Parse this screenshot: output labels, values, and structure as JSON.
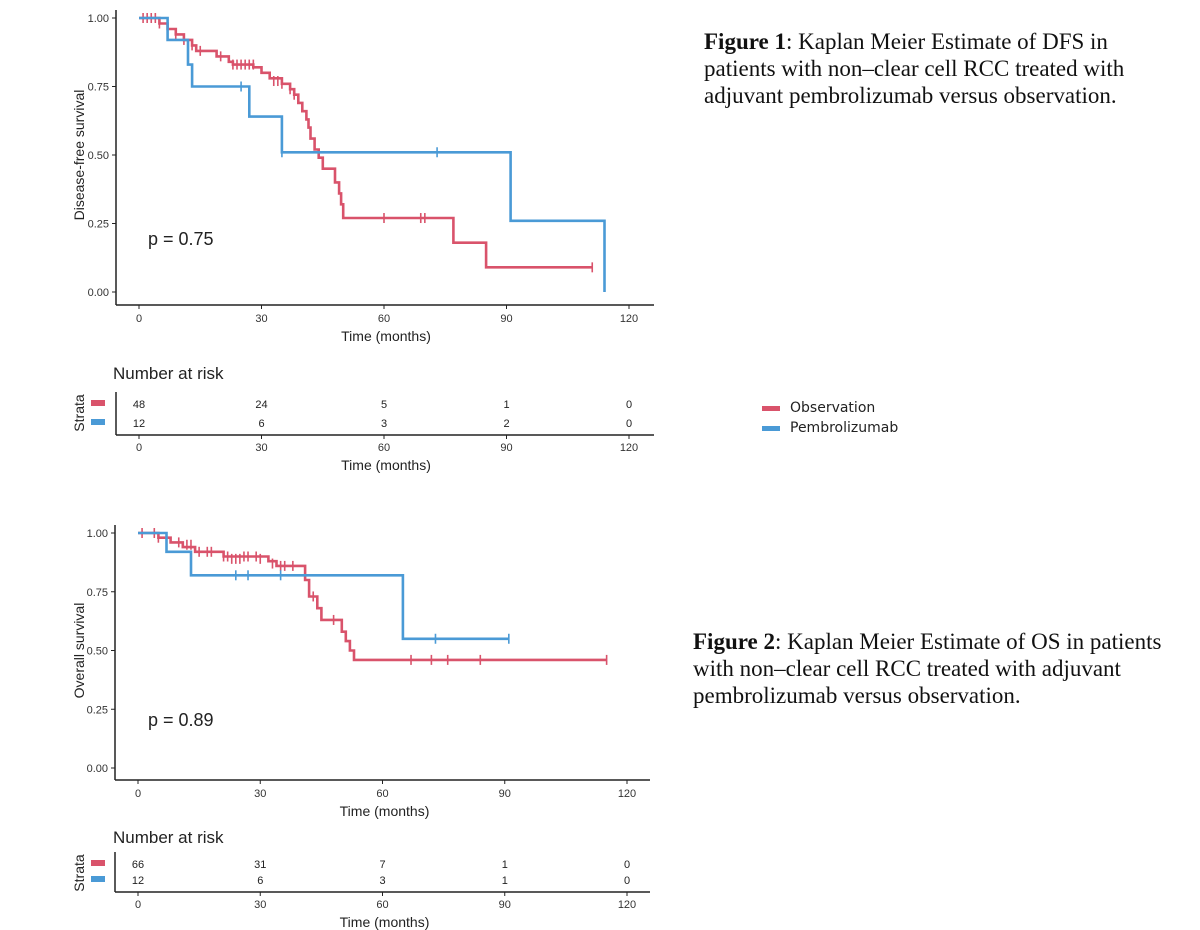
{
  "chart_data": [
    {
      "type": "line",
      "id": "dfs",
      "ylabel": "Disease-free survival",
      "xlabel": "Time (months)",
      "annotation": "p = 0.75",
      "xlim": [
        0,
        120
      ],
      "ylim": [
        0,
        1
      ],
      "x_ticks": [
        "0",
        "30",
        "60",
        "90",
        "120"
      ],
      "y_ticks": [
        "0.00",
        "0.25",
        "0.50",
        "0.75",
        "1.00"
      ],
      "series": [
        {
          "name": "Observation",
          "color": "#d9536b",
          "steps": [
            [
              0,
              1.0
            ],
            [
              5,
              0.98
            ],
            [
              7,
              0.96
            ],
            [
              9,
              0.94
            ],
            [
              11,
              0.92
            ],
            [
              13,
              0.9
            ],
            [
              14,
              0.88
            ],
            [
              19,
              0.86
            ],
            [
              22,
              0.84
            ],
            [
              23,
              0.83
            ],
            [
              28,
              0.82
            ],
            [
              30,
              0.8
            ],
            [
              32,
              0.78
            ],
            [
              35,
              0.76
            ],
            [
              37,
              0.74
            ],
            [
              38,
              0.72
            ],
            [
              39,
              0.69
            ],
            [
              40,
              0.66
            ],
            [
              41,
              0.63
            ],
            [
              41.5,
              0.6
            ],
            [
              42,
              0.56
            ],
            [
              43,
              0.52
            ],
            [
              44,
              0.49
            ],
            [
              45,
              0.45
            ],
            [
              48,
              0.4
            ],
            [
              49,
              0.36
            ],
            [
              49.5,
              0.32
            ],
            [
              50,
              0.27
            ],
            [
              77,
              0.18
            ],
            [
              85,
              0.09
            ],
            [
              111,
              0.09
            ]
          ],
          "censor": [
            [
              1,
              1.0
            ],
            [
              2,
              1.0
            ],
            [
              3,
              1.0
            ],
            [
              4,
              1.0
            ],
            [
              5,
              0.98
            ],
            [
              7,
              0.96
            ],
            [
              9,
              0.94
            ],
            [
              11,
              0.92
            ],
            [
              13,
              0.9
            ],
            [
              15,
              0.88
            ],
            [
              20,
              0.86
            ],
            [
              23,
              0.83
            ],
            [
              24,
              0.83
            ],
            [
              25,
              0.83
            ],
            [
              26,
              0.83
            ],
            [
              27,
              0.83
            ],
            [
              28,
              0.83
            ],
            [
              33,
              0.77
            ],
            [
              34,
              0.77
            ],
            [
              35,
              0.76
            ],
            [
              37,
              0.74
            ],
            [
              38,
              0.72
            ],
            [
              60,
              0.27
            ],
            [
              69,
              0.27
            ],
            [
              70,
              0.27
            ],
            [
              111,
              0.09
            ]
          ]
        },
        {
          "name": "Pembrolizumab",
          "color": "#4a9ad6",
          "steps": [
            [
              0,
              1.0
            ],
            [
              4,
              1.0
            ],
            [
              7,
              0.92
            ],
            [
              12,
              0.83
            ],
            [
              13,
              0.75
            ],
            [
              27,
              0.64
            ],
            [
              35,
              0.51
            ],
            [
              91,
              0.26
            ],
            [
              114,
              0.0
            ]
          ],
          "censor": [
            [
              25,
              0.75
            ],
            [
              35,
              0.51
            ],
            [
              73,
              0.51
            ]
          ]
        }
      ],
      "risk_table": {
        "title": "Number at risk",
        "strata_label": "Strata",
        "xlabel": "Time (months)",
        "x_ticks": [
          "0",
          "30",
          "60",
          "90",
          "120"
        ],
        "rows": [
          {
            "name": "Observation",
            "color": "#d9536b",
            "values": [
              "48",
              "24",
              "5",
              "1",
              "0"
            ]
          },
          {
            "name": "Pembrolizumab",
            "color": "#4a9ad6",
            "values": [
              "12",
              "6",
              "3",
              "2",
              "0"
            ]
          }
        ]
      }
    },
    {
      "type": "line",
      "id": "os",
      "ylabel": "Overall survival",
      "xlabel": "Time (months)",
      "annotation": "p = 0.89",
      "xlim": [
        0,
        120
      ],
      "ylim": [
        0,
        1
      ],
      "x_ticks": [
        "0",
        "30",
        "60",
        "90",
        "120"
      ],
      "y_ticks": [
        "0.00",
        "0.25",
        "0.50",
        "0.75",
        "1.00"
      ],
      "series": [
        {
          "name": "Observation",
          "color": "#d9536b",
          "steps": [
            [
              0,
              1.0
            ],
            [
              5,
              0.98
            ],
            [
              8,
              0.96
            ],
            [
              11,
              0.94
            ],
            [
              14,
              0.92
            ],
            [
              21,
              0.9
            ],
            [
              32,
              0.88
            ],
            [
              34,
              0.86
            ],
            [
              41,
              0.8
            ],
            [
              42,
              0.73
            ],
            [
              44,
              0.68
            ],
            [
              45,
              0.63
            ],
            [
              50,
              0.58
            ],
            [
              51,
              0.54
            ],
            [
              52,
              0.5
            ],
            [
              53,
              0.46
            ],
            [
              115,
              0.46
            ]
          ],
          "censor": [
            [
              1,
              1.0
            ],
            [
              4,
              1.0
            ],
            [
              5,
              0.98
            ],
            [
              10,
              0.96
            ],
            [
              12,
              0.95
            ],
            [
              13,
              0.95
            ],
            [
              15,
              0.92
            ],
            [
              17,
              0.92
            ],
            [
              18,
              0.92
            ],
            [
              21,
              0.9
            ],
            [
              22,
              0.9
            ],
            [
              23,
              0.89
            ],
            [
              24,
              0.89
            ],
            [
              25,
              0.89
            ],
            [
              26,
              0.9
            ],
            [
              27,
              0.9
            ],
            [
              29,
              0.9
            ],
            [
              30,
              0.89
            ],
            [
              33,
              0.87
            ],
            [
              35,
              0.86
            ],
            [
              36,
              0.86
            ],
            [
              38,
              0.86
            ],
            [
              43,
              0.73
            ],
            [
              48,
              0.63
            ],
            [
              67,
              0.46
            ],
            [
              72,
              0.46
            ],
            [
              76,
              0.46
            ],
            [
              84,
              0.46
            ],
            [
              115,
              0.46
            ]
          ]
        },
        {
          "name": "Pembrolizumab",
          "color": "#4a9ad6",
          "steps": [
            [
              0,
              1.0
            ],
            [
              4,
              1.0
            ],
            [
              7,
              0.92
            ],
            [
              13,
              0.82
            ],
            [
              65,
              0.55
            ],
            [
              91,
              0.55
            ]
          ],
          "censor": [
            [
              24,
              0.82
            ],
            [
              27,
              0.82
            ],
            [
              35,
              0.82
            ],
            [
              73,
              0.55
            ],
            [
              91,
              0.55
            ]
          ]
        }
      ],
      "risk_table": {
        "title": "Number at risk",
        "strata_label": "Strata",
        "xlabel": "Time (months)",
        "x_ticks": [
          "0",
          "30",
          "60",
          "90",
          "120"
        ],
        "rows": [
          {
            "name": "Observation",
            "color": "#d9536b",
            "values": [
              "66",
              "31",
              "7",
              "1",
              "0"
            ]
          },
          {
            "name": "Pembrolizumab",
            "color": "#4a9ad6",
            "values": [
              "12",
              "6",
              "3",
              "1",
              "0"
            ]
          }
        ]
      }
    }
  ],
  "legend": [
    {
      "label": "Observation",
      "color": "#d9536b"
    },
    {
      "label": "Pembrolizumab",
      "color": "#4a9ad6"
    }
  ],
  "captions": {
    "fig1": {
      "label": "Figure 1",
      "text": ": Kaplan Meier Estimate of DFS in patients with non–clear cell RCC treated with adjuvant pembrolizumab versus observation."
    },
    "fig2": {
      "label": "Figure 2",
      "text": ": Kaplan Meier Estimate of OS in patients with non–clear cell RCC treated with adjuvant pembrolizumab versus observation."
    }
  }
}
